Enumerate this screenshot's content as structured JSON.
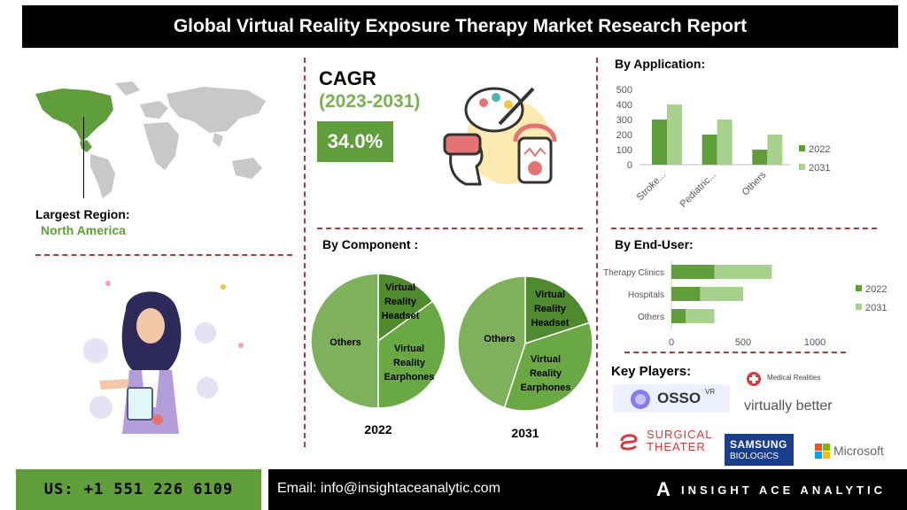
{
  "header": {
    "title": "Global Virtual Reality Exposure Therapy Market Research Report"
  },
  "region": {
    "label": "Largest Region:",
    "value": "North America"
  },
  "cagr": {
    "title": "CAGR",
    "period": "(2023-2031)",
    "value": "34.0%"
  },
  "component": {
    "title": "By Component :"
  },
  "application": {
    "title": "By Application:"
  },
  "enduser": {
    "title": "By End-User:"
  },
  "key_players": {
    "title": "Key Players:",
    "names": [
      "OSSO VR",
      "Medical Realities",
      "virtually better",
      "SURGICAL THEATER",
      "SAMSUNG BIOLOGICS",
      "Microsoft"
    ],
    "osso_main": "OSSO",
    "osso_sup": "VR",
    "surgical_line1": "SURGICAL",
    "surgical_line2": "THEATER",
    "samsung_line1": "SAMSUNG",
    "samsung_line2": "BIOLOGICS"
  },
  "footer": {
    "phone": "US: +1 551 226 6109",
    "email": "Email: info@insightaceanalytic.com",
    "brand": "INSIGHT ACE ANALYTIC",
    "brand_letter": "A"
  },
  "colors": {
    "green_dark": "#5f9e3a",
    "green_light": "#a9d18e",
    "pie_dark": "#4f8a2e",
    "pie_mid": "#6aa843",
    "pie_light": "#7fb05c",
    "accent_red": "#b23a3a"
  },
  "chart_data": [
    {
      "type": "bar",
      "title": "By Application:",
      "categories": [
        "Stroke...",
        "Pediatric...",
        "Others"
      ],
      "series": [
        {
          "name": "2022",
          "values": [
            300,
            200,
            100
          ]
        },
        {
          "name": "2031",
          "values": [
            400,
            300,
            200
          ]
        }
      ],
      "ylim": [
        0,
        500
      ],
      "yticks": [
        0,
        100,
        200,
        300,
        400,
        500
      ],
      "legend": "right"
    },
    {
      "type": "bar",
      "orientation": "horizontal",
      "stacked": true,
      "title": "By End-User:",
      "categories": [
        "Therapy Clinics",
        "Hospitals",
        "Others"
      ],
      "series": [
        {
          "name": "2022",
          "values": [
            300,
            200,
            100
          ]
        },
        {
          "name": "2031",
          "values": [
            400,
            300,
            200
          ]
        }
      ],
      "xlim": [
        0,
        1000
      ],
      "xticks": [
        0,
        500,
        1000
      ],
      "legend": "right"
    },
    {
      "type": "pie",
      "title": "2022",
      "labels": [
        "Virtual Reality Headset",
        "Virtual Reality Earphones",
        "Others"
      ],
      "values": [
        15,
        35,
        50
      ]
    },
    {
      "type": "pie",
      "title": "2031",
      "labels": [
        "Virtual Reality Headset",
        "Virtual Reality Earphones",
        "Others"
      ],
      "values": [
        20,
        35,
        45
      ]
    }
  ]
}
